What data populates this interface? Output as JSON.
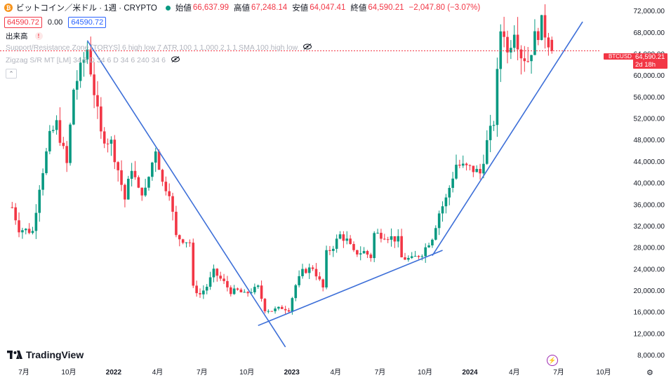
{
  "header": {
    "symbol_title": "ビットコイン／米ドル · 1週 · CRYPTO",
    "open_label": "始値",
    "open_value": "66,637.99",
    "high_label": "高値",
    "high_value": "67,248.14",
    "low_label": "安値",
    "low_value": "64,047.41",
    "close_label": "終値",
    "close_value": "64,590.21",
    "change": "−2,047.80 (−3.07%)"
  },
  "price_boxes": {
    "bid": "64590.72",
    "spread": "0.00",
    "ask": "64590.72"
  },
  "indicators": {
    "volume_label": "出来高",
    "support_resistance": "Support/Resistance Zone [TORYS] 6 high low 7 ATR 100 1 1,000 2 1 1 SMA 100 high low",
    "zigzag": "Zigzag S/R MT [LM] 34 6 D 34 6 D 34 6 240 34 6"
  },
  "last_price": {
    "symbol": "BTCUSD",
    "price": "64,590.21",
    "countdown": "2d 18h"
  },
  "branding": {
    "logo_text": "TradingView"
  },
  "colors": {
    "up": "#089981",
    "down": "#f23645",
    "trendline": "#3d6fd8",
    "last_price": "#f23645"
  },
  "chart_data": {
    "type": "candlestick",
    "symbol": "BTCUSD",
    "interval": "1W",
    "y_axis": {
      "ticks": [
        "72,000.00",
        "68,000.00",
        "64,000.00",
        "60,000.00",
        "56,000.00",
        "52,000.00",
        "48,000.00",
        "44,000.00",
        "40,000.00",
        "36,000.00",
        "32,000.00",
        "28,000.00",
        "24,000.00",
        "20,000.00",
        "16,000.00",
        "12,000.00",
        "8,000.00"
      ],
      "min": 6500,
      "max": 73000
    },
    "x_axis": {
      "ticks": [
        "7月",
        "10月",
        "2022",
        "4月",
        "7月",
        "10月",
        "2023",
        "4月",
        "7月",
        "10月",
        "2024",
        "4月",
        "7月",
        "10月"
      ],
      "bold": [
        "2022",
        "2023",
        "2024"
      ],
      "tick_dates": [
        "2021-07-01",
        "2021-10-01",
        "2022-01-01",
        "2022-04-01",
        "2022-07-01",
        "2022-10-01",
        "2023-01-01",
        "2023-04-01",
        "2023-07-01",
        "2023-10-01",
        "2024-01-01",
        "2024-04-01",
        "2024-07-01",
        "2024-10-01"
      ]
    },
    "series_path": [
      [
        "2021-06-07",
        35500
      ],
      [
        "2021-06-21",
        31500
      ],
      [
        "2021-07-19",
        31000
      ],
      [
        "2021-08-02",
        39500
      ],
      [
        "2021-08-23",
        48500
      ],
      [
        "2021-09-06",
        51000
      ],
      [
        "2021-09-27",
        43500
      ],
      [
        "2021-10-11",
        57500
      ],
      [
        "2021-10-25",
        61000
      ],
      [
        "2021-11-08",
        65000
      ],
      [
        "2021-11-22",
        57000
      ],
      [
        "2021-12-06",
        49000
      ],
      [
        "2021-12-27",
        47500
      ],
      [
        "2022-01-10",
        42500
      ],
      [
        "2022-01-24",
        37000
      ],
      [
        "2022-02-07",
        43000
      ],
      [
        "2022-02-21",
        38500
      ],
      [
        "2022-03-07",
        38500
      ],
      [
        "2022-03-28",
        46500
      ],
      [
        "2022-04-11",
        40000
      ],
      [
        "2022-04-25",
        38500
      ],
      [
        "2022-05-09",
        30000
      ],
      [
        "2022-05-23",
        29500
      ],
      [
        "2022-06-06",
        29000
      ],
      [
        "2022-06-13",
        20500
      ],
      [
        "2022-06-27",
        19300
      ],
      [
        "2022-07-11",
        20800
      ],
      [
        "2022-07-25",
        23500
      ],
      [
        "2022-08-15",
        21500
      ],
      [
        "2022-08-29",
        19800
      ],
      [
        "2022-09-12",
        20000
      ],
      [
        "2022-09-26",
        19300
      ],
      [
        "2022-10-24",
        20600
      ],
      [
        "2022-11-07",
        16500
      ],
      [
        "2022-11-21",
        16300
      ],
      [
        "2022-12-12",
        16800
      ],
      [
        "2022-12-26",
        16500
      ],
      [
        "2023-01-09",
        21000
      ],
      [
        "2023-01-23",
        23500
      ],
      [
        "2023-02-13",
        24300
      ],
      [
        "2023-03-06",
        20500
      ],
      [
        "2023-03-13",
        26900
      ],
      [
        "2023-03-27",
        28300
      ],
      [
        "2023-04-10",
        30300
      ],
      [
        "2023-04-24",
        29300
      ],
      [
        "2023-05-08",
        27000
      ],
      [
        "2023-05-29",
        27200
      ],
      [
        "2023-06-12",
        26300
      ],
      [
        "2023-06-19",
        30600
      ],
      [
        "2023-07-10",
        30300
      ],
      [
        "2023-08-07",
        29400
      ],
      [
        "2023-08-14",
        26100
      ],
      [
        "2023-09-04",
        25800
      ],
      [
        "2023-09-25",
        27000
      ],
      [
        "2023-10-16",
        30000
      ],
      [
        "2023-10-30",
        34500
      ],
      [
        "2023-11-13",
        37000
      ],
      [
        "2023-12-04",
        43500
      ],
      [
        "2023-12-18",
        43000
      ],
      [
        "2024-01-08",
        42500
      ],
      [
        "2024-01-22",
        41800
      ],
      [
        "2024-02-05",
        47500
      ],
      [
        "2024-02-19",
        51500
      ],
      [
        "2024-03-04",
        68500
      ],
      [
        "2024-03-11",
        68300
      ],
      [
        "2024-03-18",
        64000
      ],
      [
        "2024-04-01",
        69000
      ],
      [
        "2024-04-15",
        64000
      ],
      [
        "2024-04-29",
        63000
      ],
      [
        "2024-05-13",
        67000
      ],
      [
        "2024-05-27",
        69500
      ],
      [
        "2024-06-10",
        66500
      ],
      [
        "2024-06-17",
        64590
      ]
    ],
    "trendlines": [
      {
        "from": [
          "2021-11-08",
          66500
        ],
        "to": [
          "2022-12-19",
          9500
        ]
      },
      {
        "from": [
          "2022-10-24",
          13500
        ],
        "to": [
          "2023-11-06",
          27500
        ]
      },
      {
        "from": [
          "2023-10-16",
          26500
        ],
        "to": [
          "2024-08-19",
          70000
        ]
      }
    ],
    "last_price": 64590.21
  }
}
